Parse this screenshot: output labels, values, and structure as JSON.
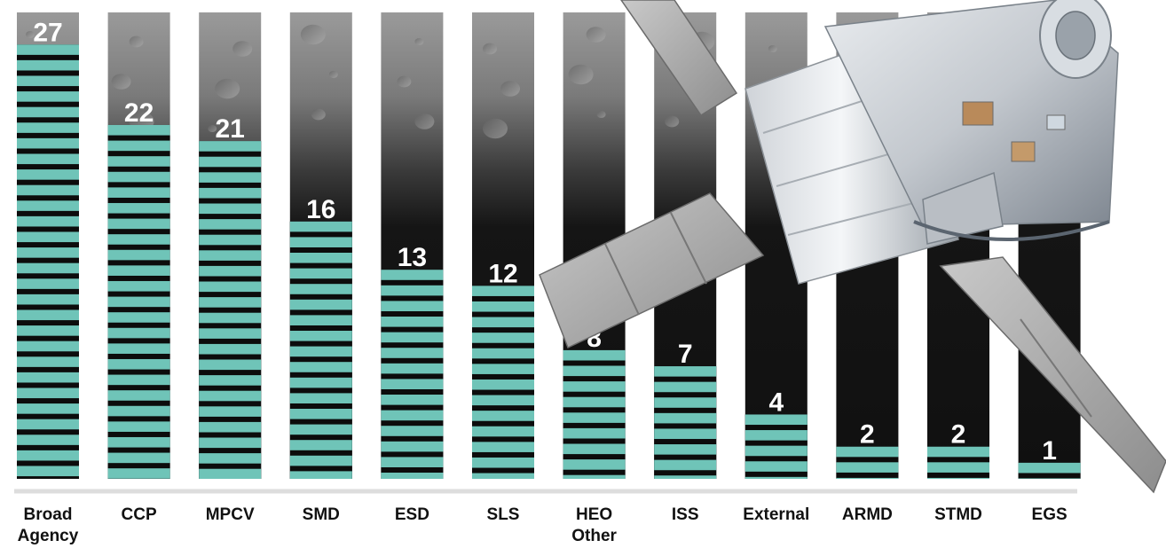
{
  "chart_data": {
    "type": "bar",
    "categories": [
      [
        "Broad",
        "Agency"
      ],
      [
        "CCP"
      ],
      [
        "MPCV"
      ],
      [
        "SMD"
      ],
      [
        "ESD"
      ],
      [
        "SLS"
      ],
      [
        "HEO",
        "Other"
      ],
      [
        "ISS"
      ],
      [
        "External"
      ],
      [
        "ARMD"
      ],
      [
        "STMD"
      ],
      [
        "EGS"
      ]
    ],
    "values": [
      27,
      22,
      21,
      16,
      13,
      12,
      8,
      7,
      4,
      2,
      2,
      1
    ],
    "title": "",
    "xlabel": "",
    "ylabel": "",
    "ylim": [
      0,
      29
    ],
    "grid": false,
    "legend": "none"
  },
  "colors": {
    "bar_fill": "#6fc4b8",
    "bar_stripe": "#0c0c0c",
    "column_background": "#111111",
    "moon_surface": "#8a8a8a",
    "baseline": "#dddddd",
    "value_text": "#ffffff",
    "label_text": "#111111"
  },
  "decoration": {
    "background_image": "lunar-surface",
    "overlay_image": "orion-spacecraft"
  }
}
